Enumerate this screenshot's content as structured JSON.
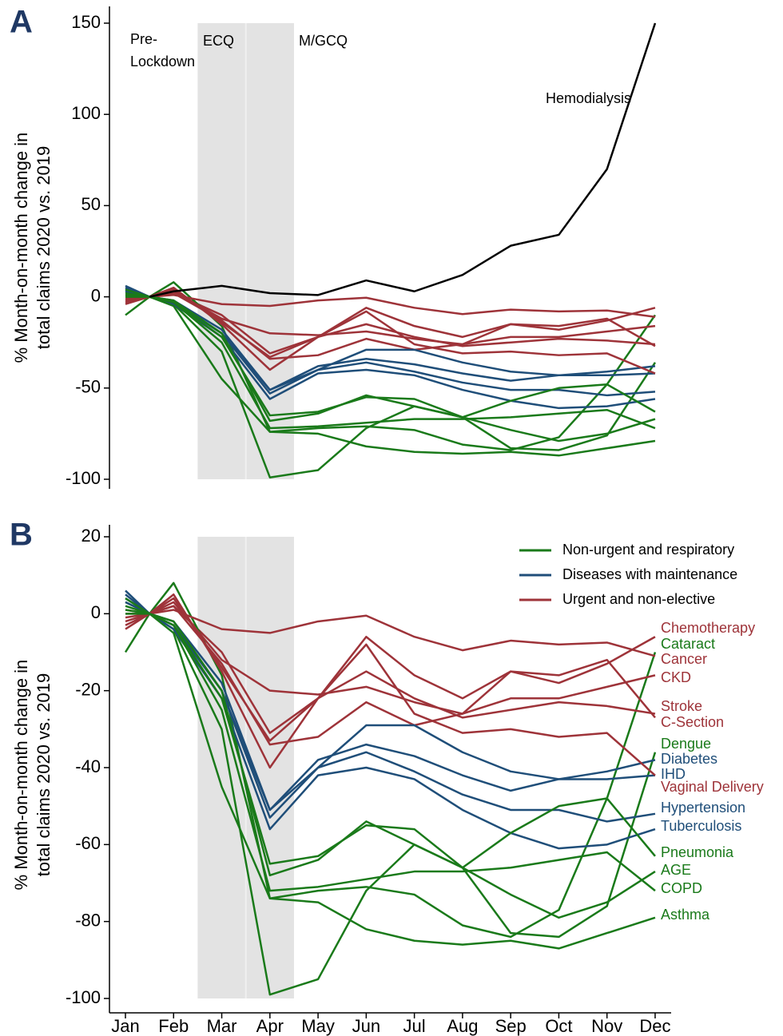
{
  "chart_data": [
    {
      "type": "line",
      "panel": "A",
      "ylabel": [
        "% Month-on-month change in",
        "total claims 2020 vs. 2019"
      ],
      "annotations": [
        "Pre-",
        "Lockdown",
        "ECQ",
        "M/GCQ",
        "Hemodialysis"
      ],
      "ylim": [
        -100,
        150
      ],
      "yticks": [
        -100,
        -50,
        0,
        50,
        100,
        150
      ],
      "x": [
        1,
        1.5,
        2,
        3,
        4,
        5,
        6,
        7,
        8,
        9,
        10,
        11,
        12
      ],
      "series": [
        {
          "color": "#9e3339",
          "values": [
            -2,
            0,
            2,
            -10,
            -31,
            -22,
            -6,
            -16,
            -22,
            -15,
            -18,
            -13,
            -6
          ]
        },
        {
          "color": "#1a7a1a",
          "values": [
            -10,
            0,
            8,
            -16,
            -74,
            -72,
            -71,
            -73,
            -81,
            -84,
            -77,
            -48,
            -10
          ]
        },
        {
          "color": "#9e3339",
          "values": [
            -1,
            0,
            1,
            -4,
            -5,
            -2,
            -0.5,
            -6,
            -9.5,
            -7,
            -8,
            -7.5,
            -11
          ]
        },
        {
          "color": "#9e3339",
          "values": [
            1,
            0,
            3,
            -12,
            -20,
            -21,
            -19,
            -23,
            -26,
            -22,
            -22,
            -19,
            -16
          ]
        },
        {
          "color": "#9e3339",
          "values": [
            -3,
            0,
            4,
            -14,
            -33,
            -22,
            -15,
            -22,
            -27,
            -25,
            -23,
            -24,
            -26
          ]
        },
        {
          "color": "#9e3339",
          "values": [
            0,
            0,
            2,
            -13,
            -34,
            -32,
            -23,
            -29,
            -26,
            -15,
            -16,
            -12,
            -27
          ]
        },
        {
          "color": "#1a7a1a",
          "values": [
            3,
            0,
            -4,
            -30,
            -99,
            -95,
            -72,
            -60,
            -66,
            -83,
            -84,
            -76,
            -36
          ]
        },
        {
          "color": "#1f4e79",
          "values": [
            5,
            0,
            -2,
            -18,
            -51,
            -40,
            -29,
            -29,
            -36,
            -41,
            -43,
            -41,
            -38
          ]
        },
        {
          "color": "#1f4e79",
          "values": [
            6,
            0,
            -3,
            -20,
            -51,
            -38,
            -34,
            -37,
            -42,
            -46,
            -43,
            -43,
            -42
          ]
        },
        {
          "color": "#9e3339",
          "values": [
            -4,
            0,
            5,
            -15,
            -40,
            -22,
            -8,
            -26,
            -31,
            -30,
            -32,
            -31,
            -42
          ]
        },
        {
          "color": "#1f4e79",
          "values": [
            4,
            0,
            -3,
            -20,
            -53,
            -40,
            -36,
            -41,
            -47,
            -51,
            -51,
            -54,
            -52
          ]
        },
        {
          "color": "#1f4e79",
          "values": [
            3,
            0,
            -4,
            -22,
            -56,
            -42,
            -40,
            -43,
            -51,
            -57,
            -61,
            -60,
            -56
          ]
        },
        {
          "color": "#1a7a1a",
          "values": [
            2,
            0,
            -3,
            -22,
            -65,
            -63,
            -55,
            -56,
            -66,
            -57,
            -50,
            -48,
            -63
          ]
        },
        {
          "color": "#1a7a1a",
          "values": [
            1,
            0,
            -2,
            -20,
            -68,
            -64,
            -54,
            -60,
            -66,
            -73,
            -79,
            -75,
            -67
          ]
        },
        {
          "color": "#1a7a1a",
          "values": [
            0,
            0,
            -3,
            -25,
            -72,
            -71,
            -69,
            -67,
            -67,
            -66,
            -64,
            -62,
            -72
          ]
        },
        {
          "color": "#1a7a1a",
          "values": [
            4,
            0,
            -5,
            -45,
            -74,
            -75,
            -82,
            -85,
            -86,
            -85,
            -87,
            -83,
            -79
          ]
        },
        {
          "color": "#000000",
          "values": [
            null,
            0,
            3,
            6,
            2,
            1,
            9,
            3,
            12,
            28,
            34,
            70,
            150
          ]
        }
      ]
    },
    {
      "type": "line",
      "panel": "B",
      "ylabel": [
        "% Month-on-month change in",
        "total claims 2020 vs. 2019"
      ],
      "ylim": [
        -100,
        20
      ],
      "yticks": [
        -100,
        -80,
        -60,
        -40,
        -20,
        0,
        20
      ],
      "x": [
        1,
        1.5,
        2,
        3,
        4,
        5,
        6,
        7,
        8,
        9,
        10,
        11,
        12
      ],
      "xticks": [
        {
          "value": 1,
          "label": "Jan"
        },
        {
          "value": 2,
          "label": "Feb"
        },
        {
          "value": 3,
          "label": "Mar"
        },
        {
          "value": 4,
          "label": "Apr"
        },
        {
          "value": 5,
          "label": "May"
        },
        {
          "value": 6,
          "label": "Jun"
        },
        {
          "value": 7,
          "label": "Jul"
        },
        {
          "value": 8,
          "label": "Aug"
        },
        {
          "value": 9,
          "label": "Sep"
        },
        {
          "value": 10,
          "label": "Oct"
        },
        {
          "value": 11,
          "label": "Nov"
        },
        {
          "value": 12,
          "label": "Dec"
        }
      ],
      "legend": [
        {
          "name": "Non-urgent and respiratory",
          "color": "#1a7a1a"
        },
        {
          "name": "Diseases with maintenance",
          "color": "#1f4e79"
        },
        {
          "name": "Urgent and non-elective",
          "color": "#9e3339"
        }
      ],
      "series": [
        {
          "name": "Chemotherapy",
          "color": "#9e3339",
          "values": [
            -2,
            0,
            2,
            -10,
            -31,
            -22,
            -6,
            -16,
            -22,
            -15,
            -18,
            -13,
            -6
          ]
        },
        {
          "name": "Cataract",
          "color": "#1a7a1a",
          "values": [
            -10,
            0,
            8,
            -16,
            -74,
            -72,
            -71,
            -73,
            -81,
            -84,
            -77,
            -48,
            -10
          ]
        },
        {
          "name": "Cancer",
          "color": "#9e3339",
          "values": [
            -1,
            0,
            1,
            -4,
            -5,
            -2,
            -0.5,
            -6,
            -9.5,
            -7,
            -8,
            -7.5,
            -11
          ]
        },
        {
          "name": "CKD",
          "color": "#9e3339",
          "values": [
            1,
            0,
            3,
            -12,
            -20,
            -21,
            -19,
            -23,
            -26,
            -22,
            -22,
            -19,
            -16
          ]
        },
        {
          "name": "Stroke",
          "color": "#9e3339",
          "values": [
            -3,
            0,
            4,
            -14,
            -33,
            -22,
            -15,
            -22,
            -27,
            -25,
            -23,
            -24,
            -26
          ]
        },
        {
          "name": "C-Section",
          "color": "#9e3339",
          "values": [
            0,
            0,
            2,
            -13,
            -34,
            -32,
            -23,
            -29,
            -26,
            -15,
            -16,
            -12,
            -27
          ]
        },
        {
          "name": "Dengue",
          "color": "#1a7a1a",
          "values": [
            3,
            0,
            -4,
            -30,
            -99,
            -95,
            -72,
            -60,
            -66,
            -83,
            -84,
            -76,
            -36
          ]
        },
        {
          "name": "Diabetes",
          "color": "#1f4e79",
          "values": [
            5,
            0,
            -2,
            -18,
            -51,
            -40,
            -29,
            -29,
            -36,
            -41,
            -43,
            -41,
            -38
          ]
        },
        {
          "name": "IHD",
          "color": "#1f4e79",
          "values": [
            6,
            0,
            -3,
            -20,
            -51,
            -38,
            -34,
            -37,
            -42,
            -46,
            -43,
            -43,
            -42
          ]
        },
        {
          "name": "Vaginal Delivery",
          "color": "#9e3339",
          "values": [
            -4,
            0,
            5,
            -15,
            -40,
            -22,
            -8,
            -26,
            -31,
            -30,
            -32,
            -31,
            -42
          ]
        },
        {
          "name": "Hypertension",
          "color": "#1f4e79",
          "values": [
            4,
            0,
            -3,
            -20,
            -53,
            -40,
            -36,
            -41,
            -47,
            -51,
            -51,
            -54,
            -52
          ]
        },
        {
          "name": "Tuberculosis",
          "color": "#1f4e79",
          "values": [
            3,
            0,
            -4,
            -22,
            -56,
            -42,
            -40,
            -43,
            -51,
            -57,
            -61,
            -60,
            -56
          ]
        },
        {
          "name": "Pneumonia",
          "color": "#1a7a1a",
          "values": [
            2,
            0,
            -3,
            -22,
            -65,
            -63,
            -55,
            -56,
            -66,
            -57,
            -50,
            -48,
            -63
          ]
        },
        {
          "name": "AGE",
          "color": "#1a7a1a",
          "values": [
            1,
            0,
            -2,
            -20,
            -68,
            -64,
            -54,
            -60,
            -66,
            -73,
            -79,
            -75,
            -67
          ]
        },
        {
          "name": "COPD",
          "color": "#1a7a1a",
          "values": [
            0,
            0,
            -3,
            -25,
            -72,
            -71,
            -69,
            -67,
            -67,
            -66,
            -64,
            -62,
            -72
          ]
        },
        {
          "name": "Asthma",
          "color": "#1a7a1a",
          "values": [
            4,
            0,
            -5,
            -45,
            -74,
            -75,
            -82,
            -85,
            -86,
            -85,
            -87,
            -83,
            -79
          ]
        }
      ]
    }
  ]
}
